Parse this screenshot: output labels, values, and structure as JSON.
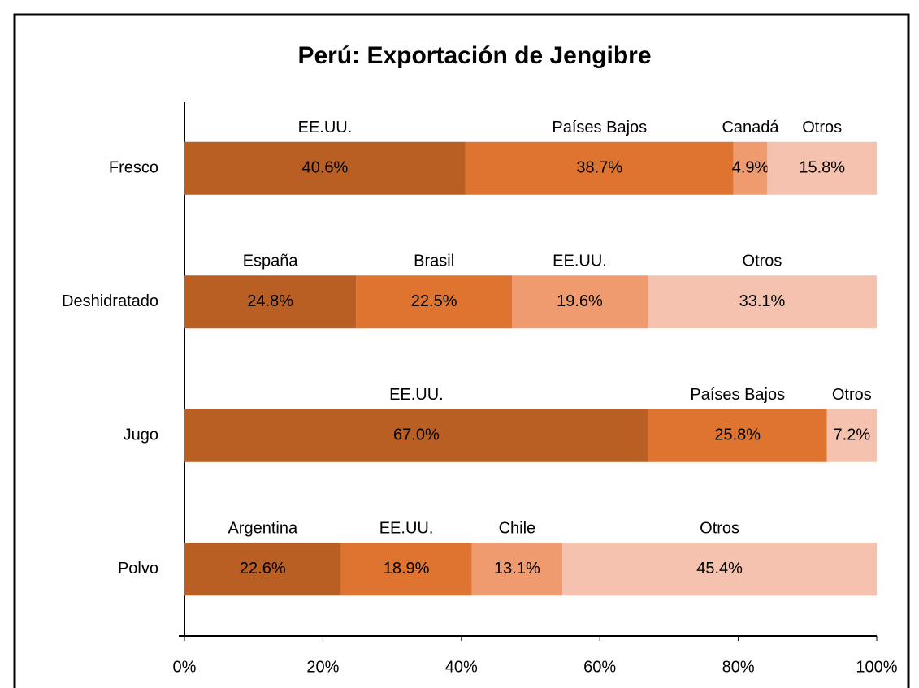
{
  "chart_data": {
    "type": "stacked_bar_horizontal",
    "title": "Perú: Exportación de Jengibre",
    "categories": [
      "Fresco",
      "Deshidratado",
      "Jugo",
      "Polvo"
    ],
    "series": [
      {
        "color": "#b95f24",
        "values": [
          40.6,
          24.8,
          67.0,
          22.6
        ],
        "value_labels": [
          "40.6%",
          "24.8%",
          "67.0%",
          "22.6%"
        ],
        "segment_names": [
          "EE.UU.",
          "España",
          "EE.UU.",
          "Argentina"
        ]
      },
      {
        "color": "#df7430",
        "values": [
          38.7,
          22.5,
          25.8,
          18.9
        ],
        "value_labels": [
          "38.7%",
          "22.5%",
          "25.8%",
          "18.9%"
        ],
        "segment_names": [
          "Países Bajos",
          "Brasil",
          "Países Bajos",
          "EE.UU."
        ]
      },
      {
        "color": "#f09a70",
        "values": [
          4.9,
          19.6,
          null,
          13.1
        ],
        "value_labels": [
          "4.9%",
          "19.6%",
          null,
          "13.1%"
        ],
        "segment_names": [
          "Canadá",
          "EE.UU.",
          null,
          "Chile"
        ]
      },
      {
        "color": "#f5c2af",
        "values": [
          15.8,
          33.1,
          7.2,
          45.4
        ],
        "value_labels": [
          "15.8%",
          "33.1%",
          "7.2%",
          "45.4%"
        ],
        "segment_names": [
          "Otros",
          "Otros",
          "Otros",
          "Otros"
        ]
      }
    ],
    "xlim": [
      0,
      100
    ],
    "xticks": [
      {
        "value": 0,
        "label": "0%"
      },
      {
        "value": 20,
        "label": "20%"
      },
      {
        "value": 40,
        "label": "40%"
      },
      {
        "value": 60,
        "label": "60%"
      },
      {
        "value": 80,
        "label": "80%"
      },
      {
        "value": 100,
        "label": "100%"
      }
    ]
  }
}
